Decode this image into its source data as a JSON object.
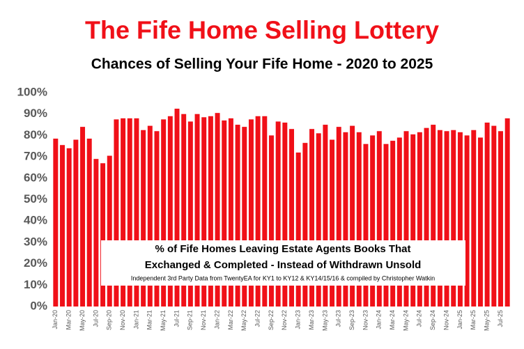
{
  "chart_data": {
    "type": "bar",
    "title": "The Fife Home Selling Lottery",
    "subtitle": "Chances of Selling Your Fife Home - 2020 to 2025",
    "annotations": [
      "% of Fife Homes Leaving Estate Agents Books That",
      "Exchanged & Completed - Instead of Withdrawn Unsold",
      "Independent 3rd Party Data from TwentyEA for KY1 to KY12 & KY14/15/16 & compiled by Christopher Watkin"
    ],
    "categories": [
      "Jan-20",
      null,
      "Mar-20",
      null,
      "May-20",
      null,
      "Jul-20",
      null,
      "Sep-20",
      null,
      "Nov-20",
      null,
      "Jan-21",
      null,
      "Mar-21",
      null,
      "May-21",
      null,
      "Jul-21",
      null,
      "Sep-21",
      null,
      "Nov-21",
      null,
      "Jan-22",
      null,
      "Mar-22",
      null,
      "May-22",
      null,
      "Jul-22",
      null,
      "Sep-22",
      null,
      "Nov-22",
      null,
      "Jan-23",
      null,
      "Mar-23",
      null,
      "May-23",
      null,
      "Jul-23",
      null,
      "Sep-23",
      null,
      "Nov-23",
      null,
      "Jan-24",
      null,
      "Mar-24",
      null,
      "May-24",
      null,
      "Jul-24",
      null,
      "Sep-24",
      null,
      "Nov-24",
      null,
      "Jan-25",
      null,
      "Mar-25",
      null,
      "May-25",
      null,
      "Jul-25",
      null
    ],
    "values": [
      78.5,
      75.5,
      74,
      78,
      84,
      78.5,
      69,
      67,
      70.5,
      87.5,
      88,
      88,
      88,
      82.5,
      84.5,
      82,
      87.5,
      89,
      92.5,
      90,
      86.5,
      90,
      88.5,
      89,
      90.5,
      87,
      88,
      85,
      84,
      87.5,
      89,
      89,
      80,
      86.5,
      86,
      83,
      72,
      76.5,
      83,
      81,
      85,
      78,
      84,
      81.5,
      84.5,
      81.5,
      76,
      80,
      82,
      76,
      77.5,
      79,
      82,
      80.5,
      81.5,
      83.5,
      85,
      82.5,
      82,
      82.5,
      81.5,
      80,
      82.5,
      79,
      86,
      84.5,
      82,
      88
    ],
    "color": "#f01018",
    "ylim": [
      0,
      100
    ],
    "yticks": [
      {
        "value": 0,
        "label": "0%"
      },
      {
        "value": 10,
        "label": "10%"
      },
      {
        "value": 20,
        "label": "20%"
      },
      {
        "value": 30,
        "label": "30%"
      },
      {
        "value": 40,
        "label": "40%"
      },
      {
        "value": 50,
        "label": "50%"
      },
      {
        "value": 60,
        "label": "60%"
      },
      {
        "value": 70,
        "label": "70%"
      },
      {
        "value": 80,
        "label": "80%"
      },
      {
        "value": 90,
        "label": "90%"
      },
      {
        "value": 100,
        "label": "100%"
      }
    ],
    "grid": false
  }
}
